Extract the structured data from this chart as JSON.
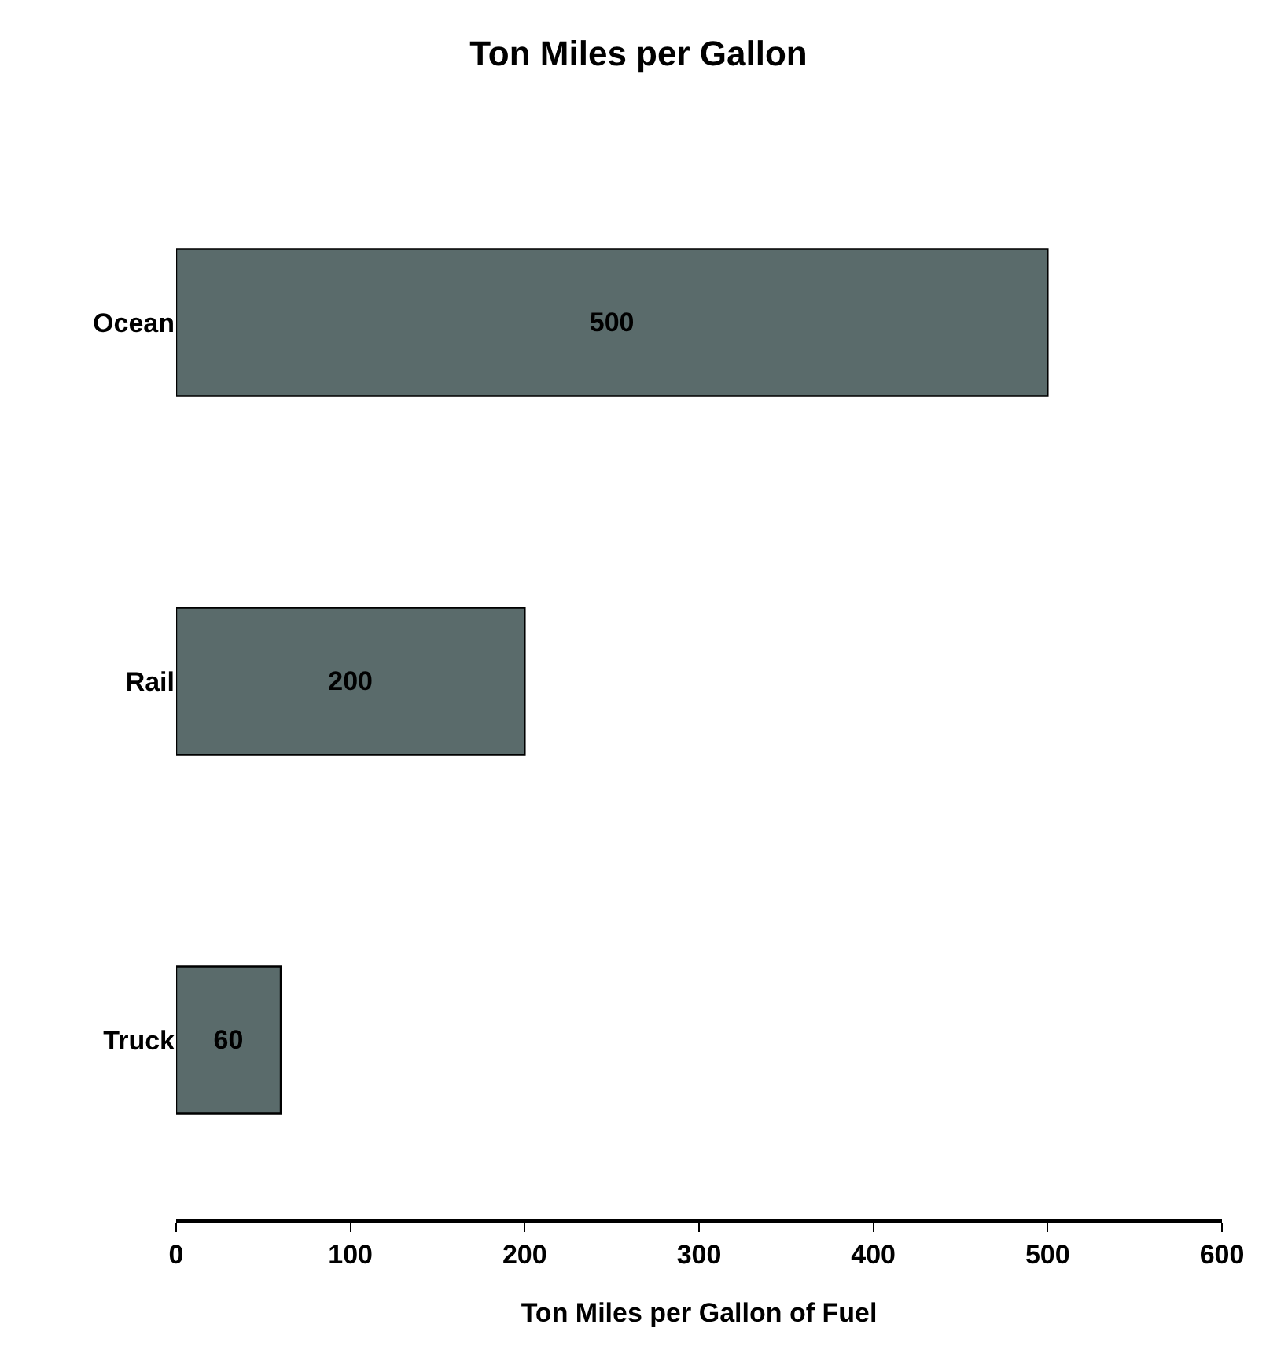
{
  "chart_data": {
    "type": "bar",
    "orientation": "horizontal",
    "title": "Ton Miles per Gallon",
    "xlabel": "Ton Miles per Gallon of Fuel",
    "categories": [
      "Ocean",
      "Rail",
      "Truck"
    ],
    "values": [
      500,
      200,
      60
    ],
    "color": "#5a6b6b",
    "xlim": [
      0,
      600
    ],
    "xticks": [
      0,
      100,
      200,
      300,
      400,
      500,
      600
    ],
    "data_labels": true
  }
}
